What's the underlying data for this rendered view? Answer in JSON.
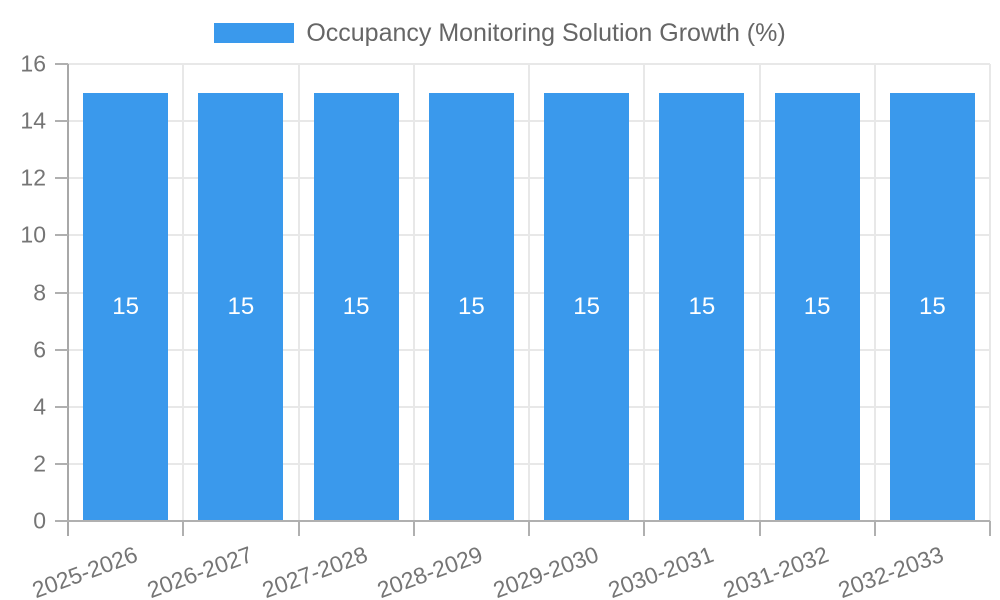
{
  "legend": {
    "label": "Occupancy Monitoring Solution Growth (%)"
  },
  "colors": {
    "bar": "#3a99ec",
    "bar_label_text": "#ffffff",
    "legend_text": "#666666",
    "axis_text": "#757575",
    "gridline": "#e8e8e8",
    "axis_line": "#b0b0b0",
    "background": "#ffffff"
  },
  "chart_data": {
    "type": "bar",
    "title": "Occupancy Monitoring Solution Growth (%)",
    "categories": [
      "2025-2026",
      "2026-2027",
      "2027-2028",
      "2028-2029",
      "2029-2030",
      "2030-2031",
      "2031-2032",
      "2032-2033"
    ],
    "values": [
      15,
      15,
      15,
      15,
      15,
      15,
      15,
      15
    ],
    "bar_labels": [
      "15",
      "15",
      "15",
      "15",
      "15",
      "15",
      "15",
      "15"
    ],
    "xlabel": "",
    "ylabel": "",
    "ylim": [
      0,
      16
    ],
    "ytick_step": 2,
    "ytick_labels": [
      "0",
      "2",
      "4",
      "6",
      "8",
      "10",
      "12",
      "14",
      "16"
    ],
    "grid": true,
    "legend_position": "top",
    "x_label_rotation_deg": -20
  }
}
